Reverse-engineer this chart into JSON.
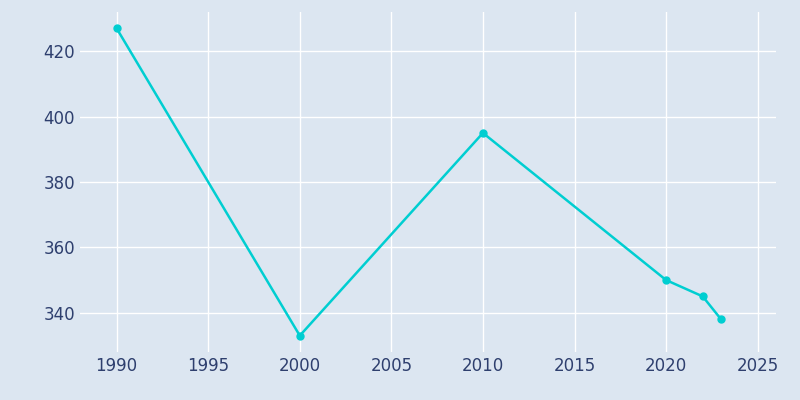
{
  "years": [
    1990,
    2000,
    2010,
    2020,
    2022,
    2023
  ],
  "population": [
    427,
    333,
    395,
    350,
    345,
    338
  ],
  "line_color": "#00CED1",
  "marker_color": "#00CED1",
  "background_color": "#dce6f1",
  "plot_background_color": "#dce6f1",
  "grid_color": "#ffffff",
  "tick_color": "#2e3f6e",
  "xlim": [
    1988,
    2026
  ],
  "ylim": [
    328,
    432
  ],
  "xticks": [
    1990,
    1995,
    2000,
    2005,
    2010,
    2015,
    2020,
    2025
  ],
  "yticks": [
    340,
    360,
    380,
    400,
    420
  ],
  "linewidth": 1.8,
  "markersize": 5,
  "tick_fontsize": 12
}
